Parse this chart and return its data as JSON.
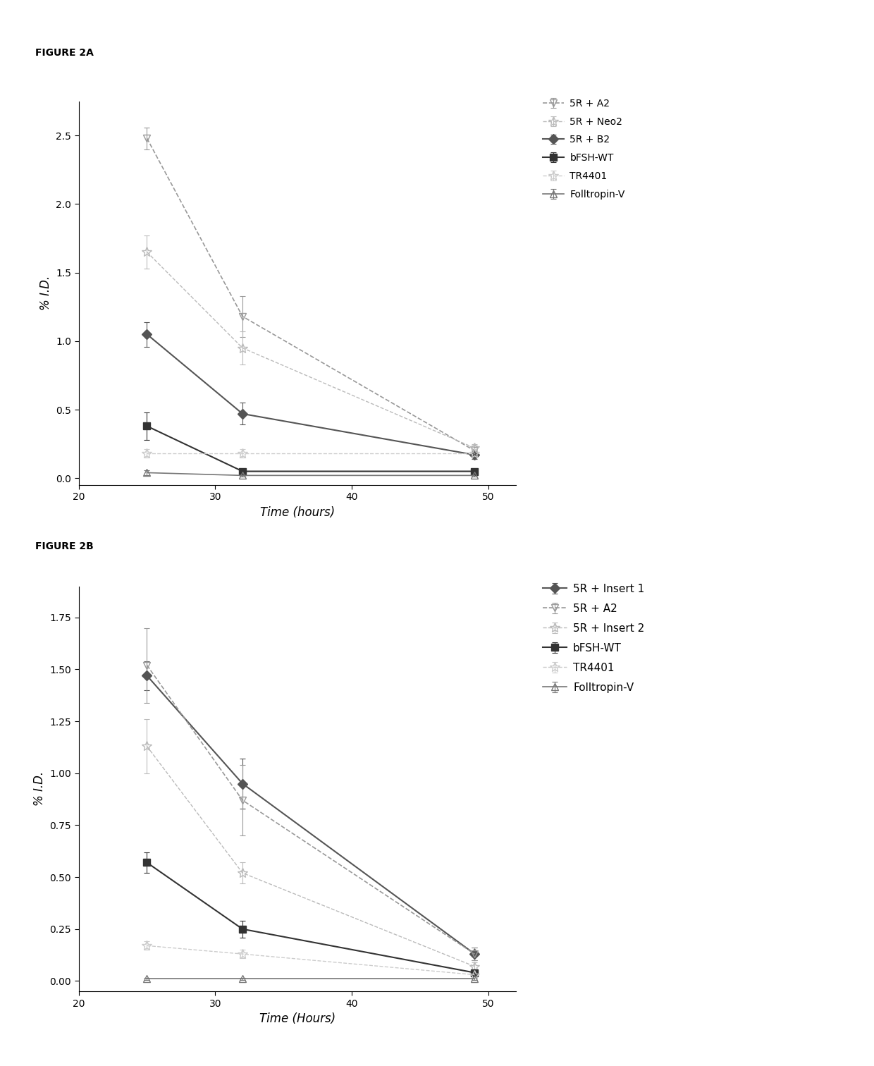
{
  "fig2a": {
    "title": "FIGURE 2A",
    "xlabel": "Time (hours)",
    "ylabel": "% I.D.",
    "xlim": [
      20,
      52
    ],
    "ylim": [
      -0.05,
      2.75
    ],
    "xticks": [
      20,
      30,
      40,
      50
    ],
    "ytick_vals": [
      0.0,
      0.5,
      1.0,
      1.5,
      2.0,
      2.5
    ],
    "ytick_labels": [
      "0.0",
      "0.5",
      "1.0",
      "1.5",
      "2.0",
      "2.5"
    ],
    "series": [
      {
        "label": "5R + A2",
        "x": [
          25,
          32,
          49
        ],
        "y": [
          2.48,
          1.18,
          0.2
        ],
        "yerr": [
          0.08,
          0.15,
          0.04
        ],
        "color": "#999999",
        "marker": "v",
        "linestyle": "--",
        "markersize": 7,
        "linewidth": 1.2,
        "mfc": "none",
        "mec": "#999999"
      },
      {
        "label": "5R + Neo2",
        "x": [
          25,
          32,
          49
        ],
        "y": [
          1.65,
          0.95,
          0.22
        ],
        "yerr": [
          0.12,
          0.12,
          0.03
        ],
        "color": "#bbbbbb",
        "marker": "*",
        "linestyle": "--",
        "markersize": 10,
        "linewidth": 1.0,
        "mfc": "none",
        "mec": "#bbbbbb"
      },
      {
        "label": "5R + B2",
        "x": [
          25,
          32,
          49
        ],
        "y": [
          1.05,
          0.47,
          0.17
        ],
        "yerr": [
          0.09,
          0.08,
          0.03
        ],
        "color": "#555555",
        "marker": "D",
        "linestyle": "-",
        "markersize": 7,
        "linewidth": 1.5,
        "mfc": "#555555",
        "mec": "#555555"
      },
      {
        "label": "bFSH-WT",
        "x": [
          25,
          32,
          49
        ],
        "y": [
          0.38,
          0.05,
          0.05
        ],
        "yerr": [
          0.1,
          0.02,
          0.01
        ],
        "color": "#333333",
        "marker": "s",
        "linestyle": "-",
        "markersize": 7,
        "linewidth": 1.5,
        "mfc": "#333333",
        "mec": "#333333"
      },
      {
        "label": "TR4401",
        "x": [
          25,
          32,
          49
        ],
        "y": [
          0.18,
          0.18,
          0.18
        ],
        "yerr": [
          0.03,
          0.03,
          0.03
        ],
        "color": "#cccccc",
        "marker": "*",
        "linestyle": "--",
        "markersize": 10,
        "linewidth": 1.0,
        "mfc": "none",
        "mec": "#cccccc"
      },
      {
        "label": "Folltropin-V",
        "x": [
          25,
          32,
          49
        ],
        "y": [
          0.04,
          0.02,
          0.02
        ],
        "yerr": [
          0.02,
          0.01,
          0.01
        ],
        "color": "#777777",
        "marker": "^",
        "linestyle": "-",
        "markersize": 7,
        "linewidth": 1.2,
        "mfc": "none",
        "mec": "#777777"
      }
    ]
  },
  "fig2b": {
    "title": "FIGURE 2B",
    "xlabel": "Time (Hours)",
    "ylabel": "% I.D.",
    "xlim": [
      20,
      52
    ],
    "ylim": [
      -0.05,
      1.9
    ],
    "xticks": [
      20,
      30,
      40,
      50
    ],
    "ytick_vals": [
      0.0,
      0.25,
      0.5,
      0.75,
      1.0,
      1.25,
      1.5,
      1.75
    ],
    "ytick_labels": [
      "0.00",
      "0.25",
      "0.50",
      "0.75",
      "1.00",
      "1.25",
      "1.50",
      "1.75"
    ],
    "series": [
      {
        "label": "5R + Insert 1",
        "x": [
          25,
          32,
          49
        ],
        "y": [
          1.47,
          0.95,
          0.13
        ],
        "yerr": [
          0.07,
          0.12,
          0.03
        ],
        "color": "#555555",
        "marker": "D",
        "linestyle": "-",
        "markersize": 7,
        "linewidth": 1.5,
        "mfc": "#555555",
        "mec": "#555555"
      },
      {
        "label": "5R + A2",
        "x": [
          25,
          32,
          49
        ],
        "y": [
          1.52,
          0.87,
          0.13
        ],
        "yerr": [
          0.18,
          0.17,
          0.03
        ],
        "color": "#999999",
        "marker": "v",
        "linestyle": "--",
        "markersize": 7,
        "linewidth": 1.2,
        "mfc": "none",
        "mec": "#999999"
      },
      {
        "label": "5R + Insert 2",
        "x": [
          25,
          32,
          49
        ],
        "y": [
          1.13,
          0.52,
          0.07
        ],
        "yerr": [
          0.13,
          0.05,
          0.02
        ],
        "color": "#bbbbbb",
        "marker": "*",
        "linestyle": "--",
        "markersize": 10,
        "linewidth": 1.0,
        "mfc": "none",
        "mec": "#bbbbbb"
      },
      {
        "label": "bFSH-WT",
        "x": [
          25,
          32,
          49
        ],
        "y": [
          0.57,
          0.25,
          0.04
        ],
        "yerr": [
          0.05,
          0.04,
          0.01
        ],
        "color": "#333333",
        "marker": "s",
        "linestyle": "-",
        "markersize": 7,
        "linewidth": 1.5,
        "mfc": "#333333",
        "mec": "#333333"
      },
      {
        "label": "TR4401",
        "x": [
          25,
          32,
          49
        ],
        "y": [
          0.17,
          0.13,
          0.03
        ],
        "yerr": [
          0.02,
          0.02,
          0.01
        ],
        "color": "#cccccc",
        "marker": "*",
        "linestyle": "--",
        "markersize": 10,
        "linewidth": 1.0,
        "mfc": "none",
        "mec": "#cccccc"
      },
      {
        "label": "Folltropin-V",
        "x": [
          25,
          32,
          49
        ],
        "y": [
          0.01,
          0.01,
          0.01
        ],
        "yerr": [
          0.005,
          0.005,
          0.005
        ],
        "color": "#777777",
        "marker": "^",
        "linestyle": "-",
        "markersize": 7,
        "linewidth": 1.2,
        "mfc": "none",
        "mec": "#777777"
      }
    ]
  },
  "background_color": "#ffffff",
  "figure_label_fontsize": 10,
  "axis_label_fontsize": 12,
  "tick_fontsize": 10,
  "legend_fontsize_a": 10,
  "legend_fontsize_b": 11
}
